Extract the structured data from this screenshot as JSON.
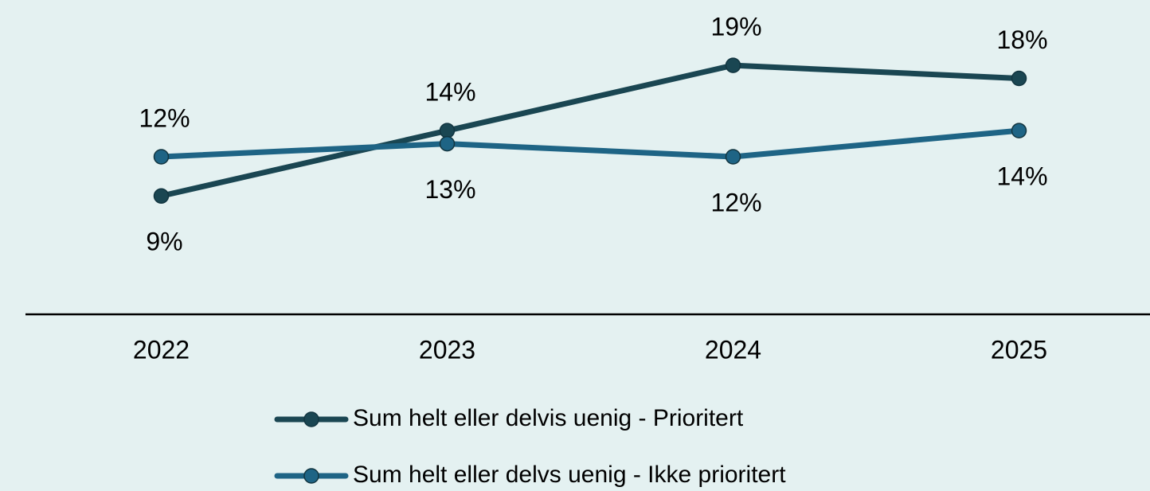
{
  "chart_data": {
    "type": "line",
    "categories": [
      "2022",
      "2023",
      "2024",
      "2025"
    ],
    "series": [
      {
        "name": "Sum helt eller delvis uenig - Prioritert",
        "color": "#1a4652",
        "values": [
          9,
          14,
          19,
          18
        ],
        "value_labels": [
          "9%",
          "14%",
          "19%",
          "18%"
        ]
      },
      {
        "name": "Sum helt eller delvs uenig - Ikke prioritert",
        "color": "#1e6485",
        "values": [
          12,
          13,
          12,
          14
        ],
        "value_labels": [
          "12%",
          "13%",
          "12%",
          "14%"
        ]
      }
    ],
    "ylim": [
      0,
      24
    ],
    "legend": "bottom"
  }
}
